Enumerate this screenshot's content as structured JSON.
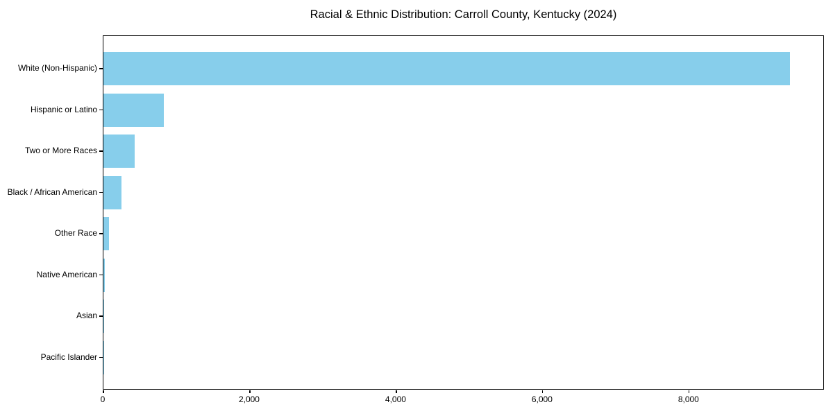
{
  "chart_data": {
    "type": "bar",
    "orientation": "horizontal",
    "title": "Racial & Ethnic Distribution: Carroll County, Kentucky (2024)",
    "categories": [
      "White (Non-Hispanic)",
      "Hispanic or Latino",
      "Two or More Races",
      "Black / African American",
      "Other Race",
      "Native American",
      "Asian",
      "Pacific Islander"
    ],
    "values": [
      9372,
      825,
      430,
      248,
      76,
      15,
      10,
      3
    ],
    "bar_color": "#87CEEB",
    "xlim": [
      0,
      9850
    ],
    "xticks": [
      0,
      2000,
      4000,
      6000,
      8000
    ],
    "xtick_labels": [
      "0",
      "2,000",
      "4,000",
      "6,000",
      "8,000"
    ],
    "grid": false,
    "legend": null,
    "xlabel": "",
    "ylabel": ""
  }
}
